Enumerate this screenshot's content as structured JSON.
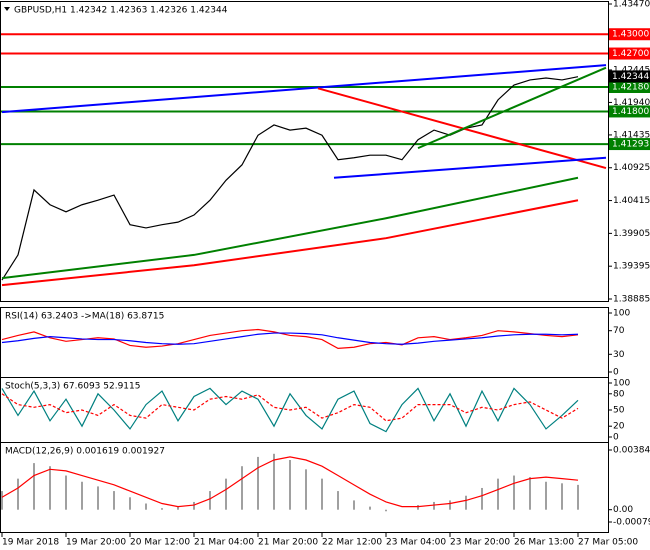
{
  "chart_data": [
    {
      "type": "line",
      "title": "GBPUSD,H1  1.42342 1.42363 1.42326 1.42344",
      "xlim": [
        0,
        151
      ],
      "x": [
        0,
        4,
        8,
        12,
        16,
        20,
        24,
        28,
        32,
        36,
        40,
        44,
        48,
        52,
        56,
        60,
        64,
        68,
        72,
        76,
        80,
        84,
        88,
        92,
        96,
        100,
        104,
        108,
        112,
        116,
        120,
        124,
        128,
        132,
        136,
        140,
        144
      ],
      "ylim": [
        1.38885,
        1.4347
      ],
      "yticks": [
        {
          "value": 1.4347,
          "label": "1.43470"
        },
        1.42445,
        {
          "value": 1.4194,
          "label": "1.41940"
        },
        1.41435,
        1.40925,
        1.40415,
        1.39905,
        1.39395,
        1.38885
      ],
      "xticks": [
        {
          "value": 0,
          "label": "19 Mar 2018"
        },
        {
          "value": 16,
          "label": "19 Mar 20:00"
        },
        {
          "value": 32,
          "label": "20 Mar 12:00"
        },
        {
          "value": 48,
          "label": "21 Mar 04:00"
        },
        {
          "value": 64,
          "label": "21 Mar 20:00"
        },
        {
          "value": 80,
          "label": "22 Mar 12:00"
        },
        {
          "value": 96,
          "label": "23 Mar 04:00"
        },
        {
          "value": 112,
          "label": "23 Mar 20:00"
        },
        {
          "value": 128,
          "label": "26 Mar 13:00"
        },
        {
          "value": 144,
          "label": "27 Mar 05:00"
        }
      ],
      "levels": [
        {
          "value": 1.43,
          "label": "1.43000",
          "color": "#ff0000"
        },
        {
          "value": 1.427,
          "label": "1.42700",
          "color": "#ff0000"
        },
        {
          "value": 1.4218,
          "label": "1.42180",
          "color": "#008000"
        },
        {
          "value": 1.418,
          "label": "1.41800",
          "color": "#008000"
        },
        {
          "value": 1.41293,
          "label": "1.41293",
          "color": "#008000"
        }
      ],
      "last_price": 1.42344,
      "series": [
        {
          "color": "#000000",
          "values": [
            1.3918,
            1.3957,
            1.4058,
            1.4035,
            1.4024,
            1.4035,
            1.4042,
            1.405,
            1.4004,
            1.3999,
            1.4004,
            1.4008,
            1.4019,
            1.4042,
            1.4073,
            1.4097,
            1.4143,
            1.4159,
            1.4151,
            1.4154,
            1.4143,
            1.4105,
            1.4108,
            1.4112,
            1.4112,
            1.4105,
            1.4136,
            1.4151,
            1.4143,
            1.4154,
            1.4159,
            1.4198,
            1.4221,
            1.4229,
            1.4232,
            1.4229,
            1.4234
          ]
        },
        {
          "color": "#ff0000",
          "x": [
            0,
            48,
            96,
            144
          ],
          "values": [
            1.391,
            1.3941,
            1.3983,
            1.4042
          ]
        },
        {
          "color": "#008000",
          "x": [
            0,
            48,
            96,
            144
          ],
          "values": [
            1.3921,
            1.3957,
            1.4014,
            1.4077
          ]
        },
        {
          "color": "#0000ff",
          "x": [
            0,
            151
          ],
          "values": [
            1.4179,
            1.4252
          ]
        },
        {
          "color": "#ff0000",
          "x": [
            79,
            151
          ],
          "values": [
            1.4216,
            1.4092
          ]
        },
        {
          "color": "#0000ff",
          "x": [
            83,
            151
          ],
          "values": [
            1.4077,
            1.4108
          ]
        },
        {
          "color": "#008000",
          "x": [
            104,
            151
          ],
          "values": [
            1.4123,
            1.4248
          ]
        }
      ]
    },
    {
      "type": "line",
      "title": "RSI(14) 63.2403 ->MA(18) 63.8715",
      "ylim": [
        0,
        100
      ],
      "yticks": [
        100,
        70,
        30,
        0
      ],
      "series": [
        {
          "color": "#ff0000",
          "values": [
            55,
            62,
            68,
            58,
            52,
            55,
            58,
            56,
            45,
            42,
            44,
            48,
            55,
            62,
            66,
            70,
            72,
            68,
            62,
            60,
            55,
            40,
            42,
            48,
            50,
            46,
            58,
            60,
            55,
            58,
            62,
            70,
            68,
            65,
            62,
            60,
            63
          ]
        },
        {
          "color": "#0000ff",
          "values": [
            50,
            53,
            57,
            60,
            58,
            56,
            55,
            55,
            53,
            50,
            48,
            47,
            48,
            52,
            56,
            60,
            64,
            66,
            66,
            65,
            63,
            58,
            54,
            50,
            48,
            47,
            49,
            52,
            54,
            56,
            58,
            61,
            63,
            64,
            64,
            63,
            64
          ]
        }
      ]
    },
    {
      "type": "line",
      "title": "Stoch(5,3,3) 67.6093 52.9115",
      "ylim": [
        0,
        100
      ],
      "yticks": [
        100,
        80,
        50,
        20,
        0
      ],
      "series": [
        {
          "color": "#008080",
          "values": [
            90,
            40,
            85,
            30,
            70,
            20,
            80,
            50,
            15,
            60,
            85,
            30,
            75,
            90,
            60,
            85,
            70,
            20,
            80,
            40,
            15,
            70,
            85,
            25,
            10,
            60,
            90,
            30,
            80,
            20,
            85,
            30,
            90,
            60,
            15,
            40,
            68
          ]
        },
        {
          "color": "#ff0000",
          "dash": true,
          "values": [
            80,
            60,
            55,
            60,
            45,
            50,
            40,
            60,
            40,
            35,
            60,
            55,
            50,
            70,
            75,
            70,
            78,
            55,
            50,
            55,
            35,
            45,
            60,
            55,
            30,
            35,
            60,
            60,
            60,
            45,
            55,
            50,
            60,
            65,
            50,
            35,
            53
          ]
        }
      ]
    },
    {
      "type": "bar",
      "title": "MACD(12,26,9) 0.001619 0.001927",
      "ylim": [
        -0.000791,
        0.003844
      ],
      "yticks": [
        0.003844,
        {
          "value": 0,
          "label": "0.00"
        },
        -0.000791
      ],
      "series": [
        {
          "type": "bar",
          "color": "#a0a0a0",
          "values": [
            0.0012,
            0.002,
            0.003,
            0.0028,
            0.0022,
            0.0018,
            0.0015,
            0.0012,
            0.0008,
            0.0004,
            0.0001,
            0.0002,
            0.0005,
            0.0012,
            0.002,
            0.0028,
            0.0034,
            0.0036,
            0.0032,
            0.0026,
            0.002,
            0.0012,
            0.0006,
            0.0002,
            -0.0001,
            0,
            0.0003,
            0.0005,
            0.0006,
            0.0009,
            0.0014,
            0.002,
            0.0022,
            0.0021,
            0.0018,
            0.0017,
            0.0016
          ]
        },
        {
          "type": "line",
          "color": "#ff0000",
          "values": [
            0.0008,
            0.0014,
            0.0022,
            0.0026,
            0.0025,
            0.0022,
            0.0019,
            0.0016,
            0.0012,
            0.0008,
            0.0004,
            0.0002,
            0.0003,
            0.0007,
            0.0013,
            0.002,
            0.0027,
            0.0032,
            0.0034,
            0.0032,
            0.0028,
            0.0022,
            0.0016,
            0.001,
            0.0005,
            0.0002,
            0.0002,
            0.0003,
            0.0004,
            0.0006,
            0.0009,
            0.0013,
            0.0017,
            0.002,
            0.0021,
            0.002,
            0.0019
          ]
        }
      ]
    }
  ]
}
